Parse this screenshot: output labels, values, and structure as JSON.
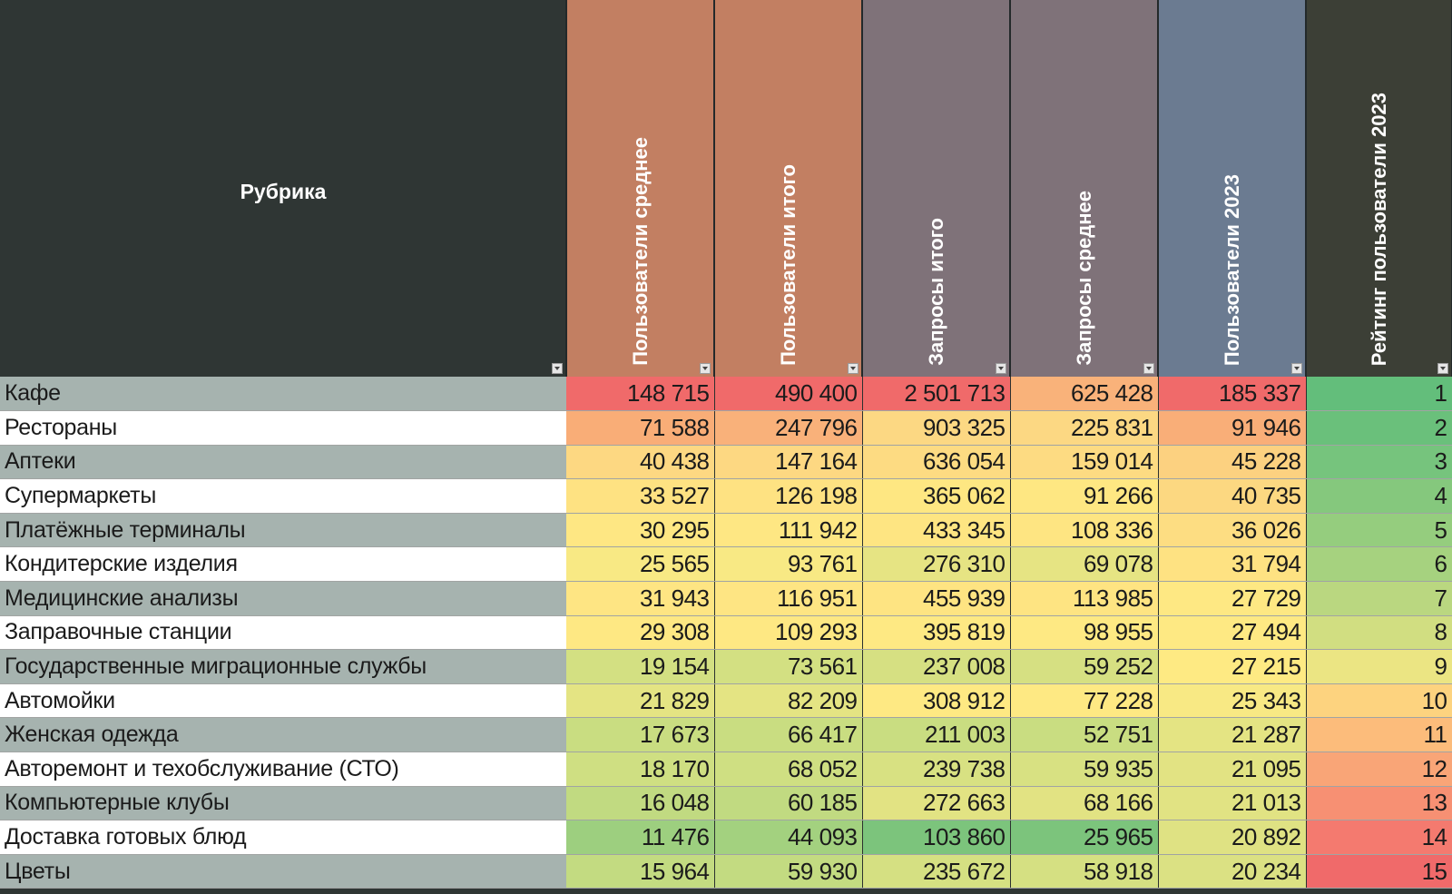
{
  "table": {
    "headers": [
      "Рубрика",
      "Пользователи среднее",
      "Пользователи итого",
      "Запросы итого",
      "Запросы среднее",
      "Пользователи 2023",
      "Рейтинг пользователи 2023"
    ],
    "header_colors": [
      "#2f3634",
      "#c27f62",
      "#c27f62",
      "#7f7279",
      "#7f7279",
      "#6b7b91",
      "#3c3f36"
    ],
    "rows": [
      {
        "name": "Кафе",
        "cells": [
          {
            "v": "148 715",
            "bg": "#f06a6a"
          },
          {
            "v": "490 400",
            "bg": "#f06a6a"
          },
          {
            "v": "2 501 713",
            "bg": "#f06a6a"
          },
          {
            "v": "625 428",
            "bg": "#f9b27a"
          },
          {
            "v": "185 337",
            "bg": "#f06a6a"
          },
          {
            "v": "1",
            "bg": "#63be7b"
          }
        ]
      },
      {
        "name": "Рестораны",
        "cells": [
          {
            "v": "71 588",
            "bg": "#f9ad77"
          },
          {
            "v": "247 796",
            "bg": "#f9b17a"
          },
          {
            "v": "903 325",
            "bg": "#fcd883"
          },
          {
            "v": "225 831",
            "bg": "#fcd883"
          },
          {
            "v": "91 946",
            "bg": "#f9ae78"
          },
          {
            "v": "2",
            "bg": "#6ac07b"
          }
        ]
      },
      {
        "name": "Аптеки",
        "cells": [
          {
            "v": "40 438",
            "bg": "#fdd882"
          },
          {
            "v": "147 164",
            "bg": "#fdd882"
          },
          {
            "v": "636 054",
            "bg": "#fddb82"
          },
          {
            "v": "159 014",
            "bg": "#fddb82"
          },
          {
            "v": "45 228",
            "bg": "#fcd180"
          },
          {
            "v": "3",
            "bg": "#76c47d"
          }
        ]
      },
      {
        "name": "Супермаркеты",
        "cells": [
          {
            "v": "33 527",
            "bg": "#fee282"
          },
          {
            "v": "126 198",
            "bg": "#fee282"
          },
          {
            "v": "365 062",
            "bg": "#fee782"
          },
          {
            "v": "91 266",
            "bg": "#fee782"
          },
          {
            "v": "40 735",
            "bg": "#fcd881"
          },
          {
            "v": "4",
            "bg": "#85c87d"
          }
        ]
      },
      {
        "name": "Платёжные терминалы",
        "cells": [
          {
            "v": "30 295",
            "bg": "#fee783"
          },
          {
            "v": "111 942",
            "bg": "#fee783"
          },
          {
            "v": "433 345",
            "bg": "#fee582"
          },
          {
            "v": "108 336",
            "bg": "#fee582"
          },
          {
            "v": "36 026",
            "bg": "#fddd82"
          },
          {
            "v": "5",
            "bg": "#95cd7e"
          }
        ]
      },
      {
        "name": "Кондитерские изделия",
        "cells": [
          {
            "v": "25 565",
            "bg": "#f8e984"
          },
          {
            "v": "93 761",
            "bg": "#f8e984"
          },
          {
            "v": "276 310",
            "bg": "#e6e483"
          },
          {
            "v": "69 078",
            "bg": "#e6e483"
          },
          {
            "v": "31 794",
            "bg": "#fee282"
          },
          {
            "v": "6",
            "bg": "#a6d27f"
          }
        ]
      },
      {
        "name": "Медицинские анализы",
        "cells": [
          {
            "v": "31 943",
            "bg": "#fee583"
          },
          {
            "v": "116 951",
            "bg": "#fee583"
          },
          {
            "v": "455 939",
            "bg": "#fee482"
          },
          {
            "v": "113 985",
            "bg": "#fee482"
          },
          {
            "v": "27 729",
            "bg": "#fee883"
          },
          {
            "v": "7",
            "bg": "#bad780"
          }
        ]
      },
      {
        "name": "Заправочные станции",
        "cells": [
          {
            "v": "29 308",
            "bg": "#fee883"
          },
          {
            "v": "109 293",
            "bg": "#fee883"
          },
          {
            "v": "395 819",
            "bg": "#fee983"
          },
          {
            "v": "98 955",
            "bg": "#fee983"
          },
          {
            "v": "27 494",
            "bg": "#fee983"
          },
          {
            "v": "8",
            "bg": "#d1de81"
          }
        ]
      },
      {
        "name": "Государственные миграционные службы",
        "cells": [
          {
            "v": "19 154",
            "bg": "#d3e082"
          },
          {
            "v": "73 561",
            "bg": "#d3e082"
          },
          {
            "v": "237 008",
            "bg": "#d6e082"
          },
          {
            "v": "59 252",
            "bg": "#d6e082"
          },
          {
            "v": "27 215",
            "bg": "#feea83"
          },
          {
            "v": "9",
            "bg": "#ebe583"
          }
        ]
      },
      {
        "name": "Автомойки",
        "cells": [
          {
            "v": "21 829",
            "bg": "#e4e483"
          },
          {
            "v": "82 209",
            "bg": "#e4e483"
          },
          {
            "v": "308 912",
            "bg": "#fee983"
          },
          {
            "v": "77 228",
            "bg": "#fee983"
          },
          {
            "v": "25 343",
            "bg": "#f8e984"
          },
          {
            "v": "10",
            "bg": "#fdd37f"
          }
        ]
      },
      {
        "name": "Женская одежда",
        "cells": [
          {
            "v": "17 673",
            "bg": "#c9dd81"
          },
          {
            "v": "66 417",
            "bg": "#c9dd81"
          },
          {
            "v": "211 003",
            "bg": "#c9dd81"
          },
          {
            "v": "52 751",
            "bg": "#c9dd81"
          },
          {
            "v": "21 287",
            "bg": "#e4e483"
          },
          {
            "v": "11",
            "bg": "#fcbc7b"
          }
        ]
      },
      {
        "name": "Авторемонт и техобслуживание (СТО)",
        "cells": [
          {
            "v": "18 170",
            "bg": "#cfdf82"
          },
          {
            "v": "68 052",
            "bg": "#cfdf82"
          },
          {
            "v": "239 738",
            "bg": "#d8e182"
          },
          {
            "v": "59 935",
            "bg": "#d8e182"
          },
          {
            "v": "21 095",
            "bg": "#e2e383"
          },
          {
            "v": "12",
            "bg": "#f9a577"
          }
        ]
      },
      {
        "name": "Компьютерные клубы",
        "cells": [
          {
            "v": "16 048",
            "bg": "#c1da81"
          },
          {
            "v": "60 185",
            "bg": "#c1da81"
          },
          {
            "v": "272 663",
            "bg": "#e2e383"
          },
          {
            "v": "68 166",
            "bg": "#e2e383"
          },
          {
            "v": "21 013",
            "bg": "#e1e383"
          },
          {
            "v": "13",
            "bg": "#f79073"
          }
        ]
      },
      {
        "name": "Доставка готовых блюд",
        "cells": [
          {
            "v": "11 476",
            "bg": "#9dcf7f"
          },
          {
            "v": "44 093",
            "bg": "#a3d17f"
          },
          {
            "v": "103 860",
            "bg": "#7cc47c"
          },
          {
            "v": "25 965",
            "bg": "#7cc47c"
          },
          {
            "v": "20 892",
            "bg": "#dfe283"
          },
          {
            "v": "14",
            "bg": "#f47a6f"
          }
        ]
      },
      {
        "name": "Цветы",
        "cells": [
          {
            "v": "15 964",
            "bg": "#c3db81"
          },
          {
            "v": "59 930",
            "bg": "#c3db81"
          },
          {
            "v": "235 672",
            "bg": "#d5e082"
          },
          {
            "v": "58 918",
            "bg": "#d5e082"
          },
          {
            "v": "20 234",
            "bg": "#dbe183"
          },
          {
            "v": "15",
            "bg": "#f06a6a"
          }
        ]
      }
    ]
  }
}
